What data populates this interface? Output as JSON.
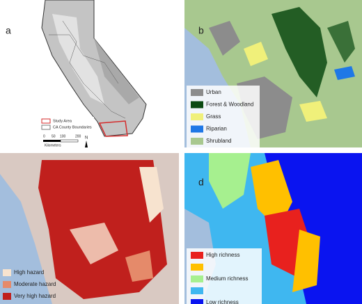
{
  "panels": [
    {
      "label": "a",
      "legend": [
        {
          "label": "Study Area",
          "color": "#d42a2a"
        },
        {
          "label": "CA County Boundaries",
          "color": "#ffffff"
        }
      ],
      "scale_labels": [
        "0",
        "50",
        "100",
        "200"
      ],
      "scale_unit": "Kilometers",
      "north": "N"
    },
    {
      "label": "b",
      "legend": [
        {
          "label": "Urban",
          "color": "#8c8c8c"
        },
        {
          "label": "Forest & Woodland",
          "color": "#0c4a12"
        },
        {
          "label": "Grass",
          "color": "#f0f07a"
        },
        {
          "label": "Riparian",
          "color": "#1f78e6"
        },
        {
          "label": "Shrubland",
          "color": "#a8c88f"
        }
      ]
    },
    {
      "legend": [
        {
          "label": "High hazard",
          "color": "#f7e3cf"
        },
        {
          "label": "Moderate hazard",
          "color": "#e58a6a"
        },
        {
          "label": "Very high hazard",
          "color": "#c0201d"
        }
      ]
    },
    {
      "label": "d",
      "legend": [
        {
          "label": "High richness",
          "color": "#e8211e"
        },
        {
          "color": "#ffc000"
        },
        {
          "label": "Medium richness",
          "color": "#a6f08f"
        },
        {
          "color": "#3fb7f0"
        },
        {
          "label": "Low richness",
          "color": "#0a14f0"
        }
      ]
    }
  ]
}
